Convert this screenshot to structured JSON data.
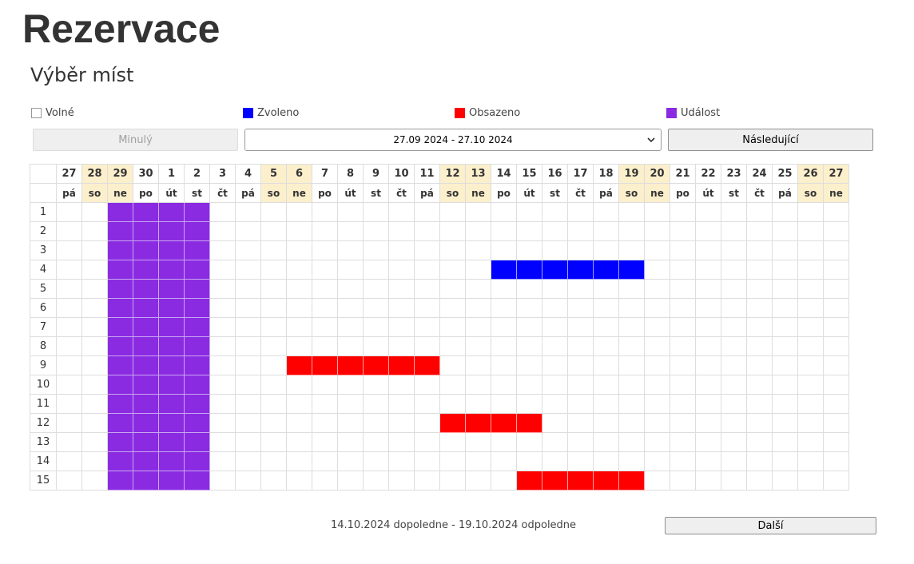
{
  "title": "Rezervace",
  "subtitle": "Výběr míst",
  "legend": [
    {
      "label": "Volné",
      "color": "#ffffff"
    },
    {
      "label": "Zvoleno",
      "color": "#0000ff"
    },
    {
      "label": "Obsazeno",
      "color": "#ff0000"
    },
    {
      "label": "Událost",
      "color": "#8a2be2"
    }
  ],
  "nav": {
    "prev_label": "Minulý",
    "range_value": "27.09 2024 - 27.10 2024",
    "next_label": "Následující"
  },
  "calendar": {
    "days": [
      {
        "d": "27",
        "w": "pá",
        "weekend": false
      },
      {
        "d": "28",
        "w": "so",
        "weekend": true
      },
      {
        "d": "29",
        "w": "ne",
        "weekend": true
      },
      {
        "d": "30",
        "w": "po",
        "weekend": false
      },
      {
        "d": "1",
        "w": "út",
        "weekend": false
      },
      {
        "d": "2",
        "w": "st",
        "weekend": false
      },
      {
        "d": "3",
        "w": "čt",
        "weekend": false
      },
      {
        "d": "4",
        "w": "pá",
        "weekend": false
      },
      {
        "d": "5",
        "w": "so",
        "weekend": true
      },
      {
        "d": "6",
        "w": "ne",
        "weekend": true
      },
      {
        "d": "7",
        "w": "po",
        "weekend": false
      },
      {
        "d": "8",
        "w": "út",
        "weekend": false
      },
      {
        "d": "9",
        "w": "st",
        "weekend": false
      },
      {
        "d": "10",
        "w": "čt",
        "weekend": false
      },
      {
        "d": "11",
        "w": "pá",
        "weekend": false
      },
      {
        "d": "12",
        "w": "so",
        "weekend": true
      },
      {
        "d": "13",
        "w": "ne",
        "weekend": true
      },
      {
        "d": "14",
        "w": "po",
        "weekend": false
      },
      {
        "d": "15",
        "w": "út",
        "weekend": false
      },
      {
        "d": "16",
        "w": "st",
        "weekend": false
      },
      {
        "d": "17",
        "w": "čt",
        "weekend": false
      },
      {
        "d": "18",
        "w": "pá",
        "weekend": false
      },
      {
        "d": "19",
        "w": "so",
        "weekend": true
      },
      {
        "d": "20",
        "w": "ne",
        "weekend": true
      },
      {
        "d": "21",
        "w": "po",
        "weekend": false
      },
      {
        "d": "22",
        "w": "út",
        "weekend": false
      },
      {
        "d": "23",
        "w": "st",
        "weekend": false
      },
      {
        "d": "24",
        "w": "čt",
        "weekend": false
      },
      {
        "d": "25",
        "w": "pá",
        "weekend": false
      },
      {
        "d": "26",
        "w": "so",
        "weekend": true
      },
      {
        "d": "27",
        "w": "ne",
        "weekend": true
      }
    ],
    "seats": [
      "1",
      "2",
      "3",
      "4",
      "5",
      "6",
      "7",
      "8",
      "9",
      "10",
      "11",
      "12",
      "13",
      "14",
      "15"
    ],
    "blocks": [
      {
        "state": "event",
        "seat_from": 1,
        "seat_to": 15,
        "day_from": 3,
        "day_to": 6
      },
      {
        "state": "selected",
        "seat_from": 4,
        "seat_to": 4,
        "day_from": 18,
        "day_to": 23
      },
      {
        "state": "booked",
        "seat_from": 9,
        "seat_to": 9,
        "day_from": 10,
        "day_to": 15
      },
      {
        "state": "booked",
        "seat_from": 12,
        "seat_to": 12,
        "day_from": 16,
        "day_to": 19
      },
      {
        "state": "booked",
        "seat_from": 15,
        "seat_to": 15,
        "day_from": 19,
        "day_to": 23
      }
    ]
  },
  "summary": "14.10.2024 dopoledne - 19.10.2024 odpoledne",
  "next_step_label": "Další"
}
